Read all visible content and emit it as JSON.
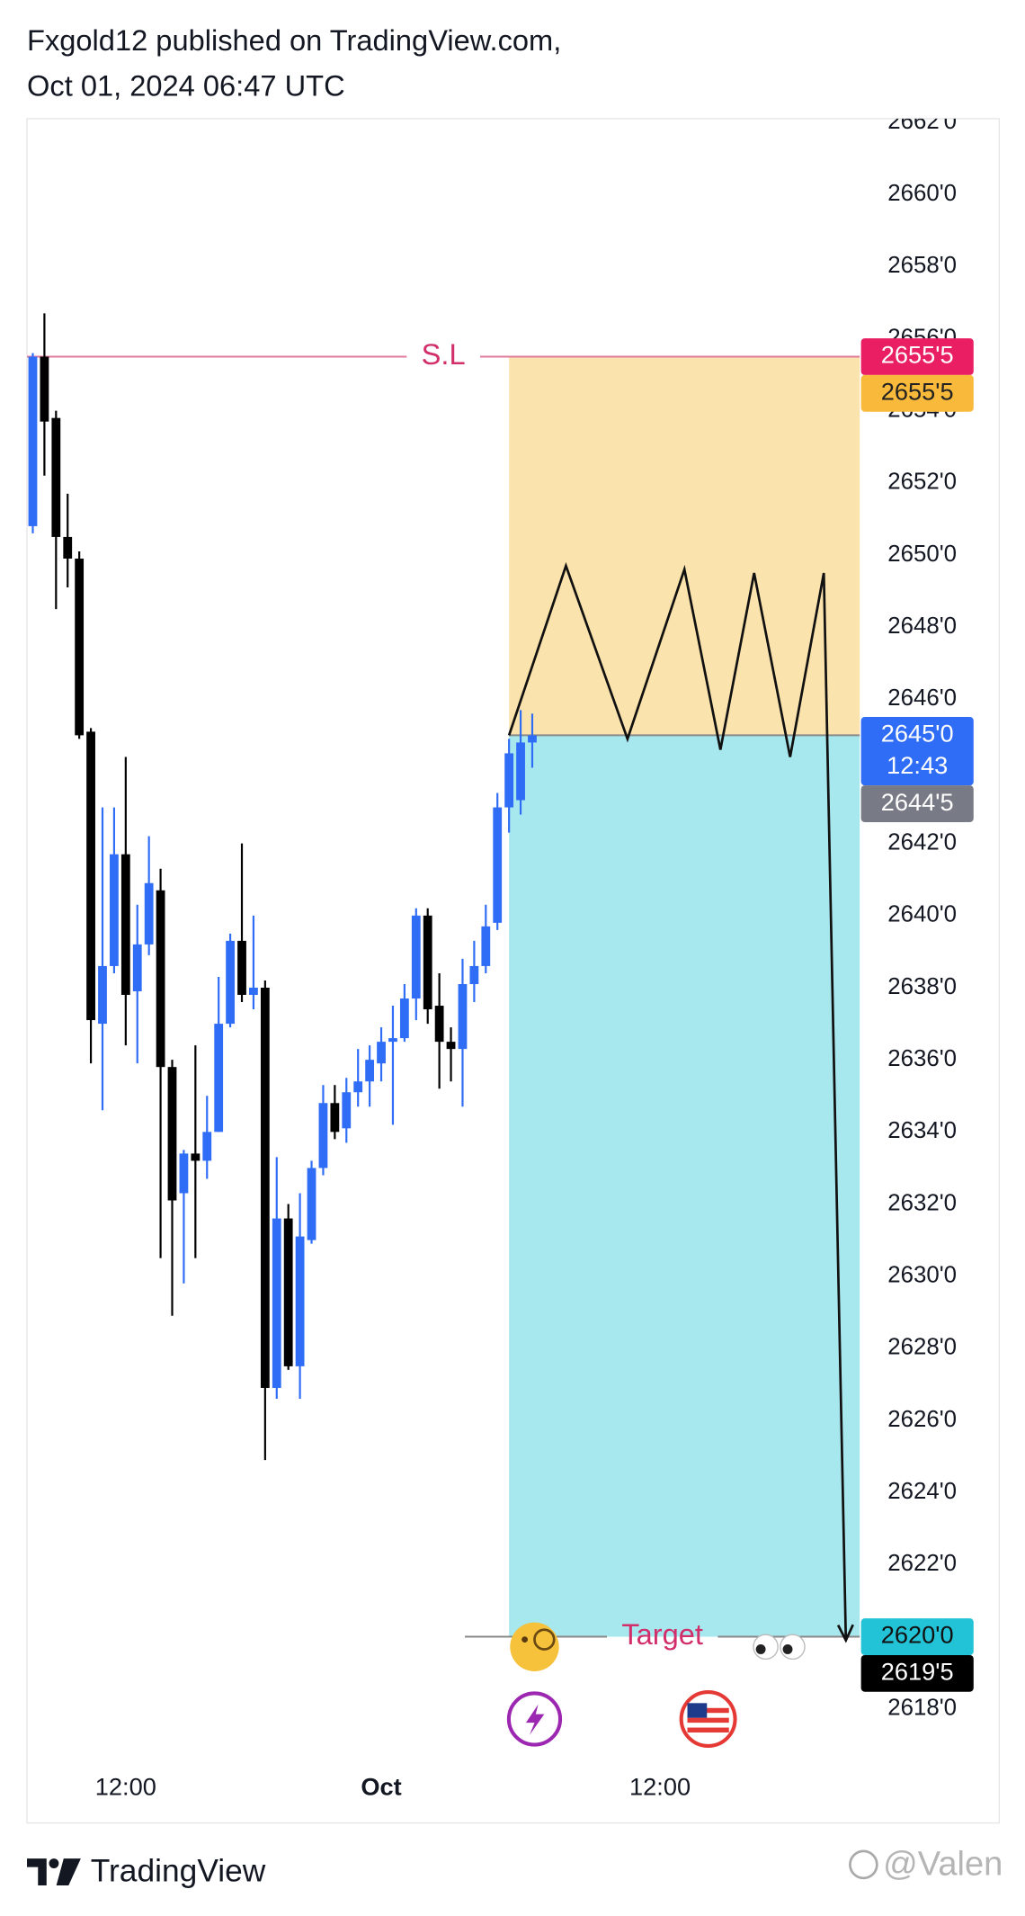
{
  "chart_data": {
    "type": "candlestick",
    "title": "Fxgold12 published on TradingView.com,",
    "subtitle": "Oct 01, 2024 06:47 UTC",
    "x": [
      0,
      1,
      2,
      3,
      4,
      5,
      6,
      7,
      8,
      9,
      10,
      11,
      12,
      13,
      14,
      15,
      16,
      17,
      18,
      19,
      20,
      21,
      22,
      23,
      24,
      25,
      26,
      27,
      28,
      29,
      30,
      31,
      32,
      33,
      34,
      35,
      36,
      37,
      38,
      39,
      40,
      41,
      42,
      43
    ],
    "open": [
      2650.8,
      2655.5,
      2653.8,
      2650.5,
      2649.9,
      2645.1,
      2637.0,
      2638.6,
      2641.7,
      2637.9,
      2639.2,
      2640.7,
      2635.8,
      2632.3,
      2633.4,
      2633.2,
      2634.0,
      2637.0,
      2639.3,
      2637.8,
      2638.0,
      2626.9,
      2631.6,
      2627.5,
      2631.0,
      2633.0,
      2634.8,
      2634.1,
      2635.1,
      2635.4,
      2635.9,
      2636.5,
      2636.6,
      2637.7,
      2640.0,
      2637.5,
      2636.5,
      2636.3,
      2638.1,
      2638.6,
      2639.8,
      2643.0,
      2643.2,
      2644.8
    ],
    "high": [
      2655.6,
      2656.7,
      2654.0,
      2651.7,
      2650.1,
      2645.2,
      2643.0,
      2643.0,
      2644.4,
      2640.3,
      2642.2,
      2641.3,
      2636.0,
      2633.5,
      2636.4,
      2635.0,
      2638.3,
      2639.5,
      2642.0,
      2640.0,
      2638.2,
      2633.3,
      2632.0,
      2632.3,
      2633.2,
      2635.3,
      2635.3,
      2635.5,
      2636.3,
      2636.4,
      2636.9,
      2637.5,
      2638.1,
      2640.2,
      2640.2,
      2638.4,
      2636.9,
      2638.8,
      2639.3,
      2640.3,
      2643.4,
      2644.9,
      2645.7,
      2645.6
    ],
    "low": [
      2650.6,
      2652.2,
      2648.5,
      2649.1,
      2644.9,
      2635.9,
      2634.6,
      2638.4,
      2636.4,
      2635.9,
      2638.9,
      2630.5,
      2628.9,
      2629.8,
      2630.5,
      2632.7,
      2634.0,
      2636.9,
      2637.6,
      2637.4,
      2624.9,
      2626.6,
      2627.4,
      2626.6,
      2630.9,
      2632.8,
      2633.8,
      2633.7,
      2634.7,
      2634.7,
      2635.4,
      2634.2,
      2636.5,
      2637.1,
      2637.0,
      2635.2,
      2635.4,
      2634.7,
      2637.6,
      2638.4,
      2639.6,
      2642.3,
      2642.8,
      2644.1
    ],
    "close": [
      2655.5,
      2653.7,
      2650.5,
      2649.9,
      2645.0,
      2637.1,
      2638.6,
      2641.7,
      2637.8,
      2639.2,
      2640.9,
      2635.8,
      2632.1,
      2633.4,
      2633.2,
      2634.0,
      2637.0,
      2639.3,
      2637.8,
      2638.0,
      2626.9,
      2631.6,
      2627.5,
      2631.1,
      2633.0,
      2634.8,
      2634.0,
      2635.1,
      2635.4,
      2636.0,
      2636.5,
      2636.6,
      2637.7,
      2640.0,
      2637.4,
      2636.5,
      2636.3,
      2638.1,
      2638.6,
      2639.7,
      2643.0,
      2644.5,
      2644.8,
      2645.0
    ],
    "up_color": "#2f6df6",
    "down_color": "#000000",
    "xlim": [
      -0.5,
      71.2
    ],
    "xticks": [
      {
        "value": 8,
        "label": "12:00"
      },
      {
        "value": 30,
        "label": "Oct"
      },
      {
        "value": 54,
        "label": "12:00"
      }
    ],
    "ylim": [
      2616.7,
      2662.1
    ],
    "yticks": [
      {
        "value": 2618,
        "label": "2618'0"
      },
      {
        "value": 2620,
        "label": "2620'0"
      },
      {
        "value": 2622,
        "label": "2622'0"
      },
      {
        "value": 2624,
        "label": "2624'0"
      },
      {
        "value": 2626,
        "label": "2626'0"
      },
      {
        "value": 2628,
        "label": "2628'0"
      },
      {
        "value": 2630,
        "label": "2630'0"
      },
      {
        "value": 2632,
        "label": "2632'0"
      },
      {
        "value": 2634,
        "label": "2634'0"
      },
      {
        "value": 2636,
        "label": "2636'0"
      },
      {
        "value": 2638,
        "label": "2638'0"
      },
      {
        "value": 2640,
        "label": "2640'0"
      },
      {
        "value": 2642,
        "label": "2642'0"
      },
      {
        "value": 2644,
        "label": "2644'0"
      },
      {
        "value": 2646,
        "label": "2646'0"
      },
      {
        "value": 2648,
        "label": "2648'0"
      },
      {
        "value": 2650,
        "label": "2650'0"
      },
      {
        "value": 2652,
        "label": "2652'0"
      },
      {
        "value": 2654,
        "label": "2654'0"
      },
      {
        "value": 2656,
        "label": "2656'0"
      },
      {
        "value": 2658,
        "label": "2658'0"
      },
      {
        "value": 2660,
        "label": "2660'0"
      },
      {
        "value": 2662,
        "label": "2662'0"
      }
    ],
    "grid": false,
    "position": {
      "start": 41,
      "stop": 2655.5,
      "entry": 2645.0,
      "target": 2620.0,
      "stop_color": "#fbe3ad",
      "target_color": "#a7e8ef",
      "entry_color": "#8a8a8a"
    },
    "lines": [
      {
        "label": "S.L",
        "value": 2655.5,
        "start": -0.5,
        "color": "#e07a9c",
        "label_color": "#d12e6a"
      },
      {
        "label": "Target",
        "value": 2620.0,
        "start": 37.2,
        "color": "#888888",
        "label_color": "#d12e6a"
      }
    ],
    "drawing": {
      "x": [
        41,
        45.9,
        51.2,
        56.1,
        59.2,
        62.1,
        65.2,
        68.1,
        70
      ],
      "y": [
        2645.0,
        2649.7,
        2644.9,
        2649.6,
        2644.6,
        2649.5,
        2644.4,
        2649.5,
        2619.9
      ],
      "color": "#111111"
    },
    "price_tags": [
      {
        "value": 2655.5,
        "label": "2655'5",
        "color": "#e91e63",
        "text_color": "#ffffff"
      },
      {
        "value": 2655.5,
        "label": "2655'5",
        "color": "#f9b93b",
        "text_color": "#222222"
      },
      {
        "value": 2645.0,
        "label": "2645'0",
        "sublabel": "12:43",
        "color": "#2f6df6",
        "text_color": "#ffffff"
      },
      {
        "value": 2644.5,
        "label": "2644'5",
        "color": "#787b86",
        "text_color": "#ffffff"
      },
      {
        "value": 2620.0,
        "label": "2620'0",
        "color": "#22c3d6",
        "text_color": "#111111"
      },
      {
        "value": 2619.5,
        "label": "2619'5",
        "color": "#000000",
        "text_color": "#ffffff"
      }
    ]
  },
  "footer": {
    "brand": "TradingView",
    "watermark": "@Valen"
  }
}
